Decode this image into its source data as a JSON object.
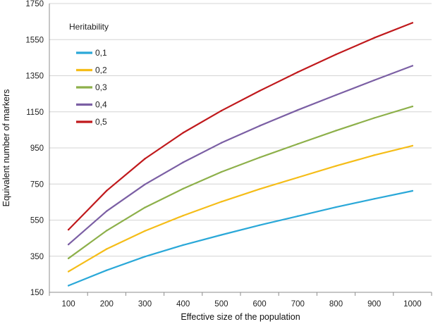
{
  "chart_data": {
    "type": "line",
    "xlabel": "Effective size of the population",
    "ylabel": "Equivalent number of markers",
    "x": [
      100,
      200,
      300,
      400,
      500,
      600,
      700,
      800,
      900,
      1000
    ],
    "ylim": [
      150,
      1750
    ],
    "yticks": [
      150,
      350,
      550,
      750,
      950,
      1150,
      1350,
      1550,
      1750
    ],
    "grid": "horizontal",
    "legend": {
      "title": "Heritability",
      "placement": "top-left"
    },
    "series": [
      {
        "name": "0,1",
        "color": "#2aa8d8",
        "values": [
          187,
          272,
          348,
          412,
          468,
          522,
          572,
          622,
          668,
          712
        ]
      },
      {
        "name": "0,2",
        "color": "#f5bd18",
        "values": [
          265,
          390,
          490,
          575,
          652,
          722,
          786,
          850,
          910,
          962
        ]
      },
      {
        "name": "0,3",
        "color": "#8db04a",
        "values": [
          338,
          492,
          620,
          724,
          817,
          897,
          972,
          1046,
          1116,
          1180
        ]
      },
      {
        "name": "0,4",
        "color": "#7b5fa4",
        "values": [
          415,
          600,
          748,
          870,
          978,
          1072,
          1160,
          1243,
          1325,
          1405
        ]
      },
      {
        "name": "0,5",
        "color": "#c0191c",
        "values": [
          497,
          713,
          890,
          1034,
          1156,
          1266,
          1370,
          1468,
          1560,
          1643
        ]
      }
    ]
  }
}
